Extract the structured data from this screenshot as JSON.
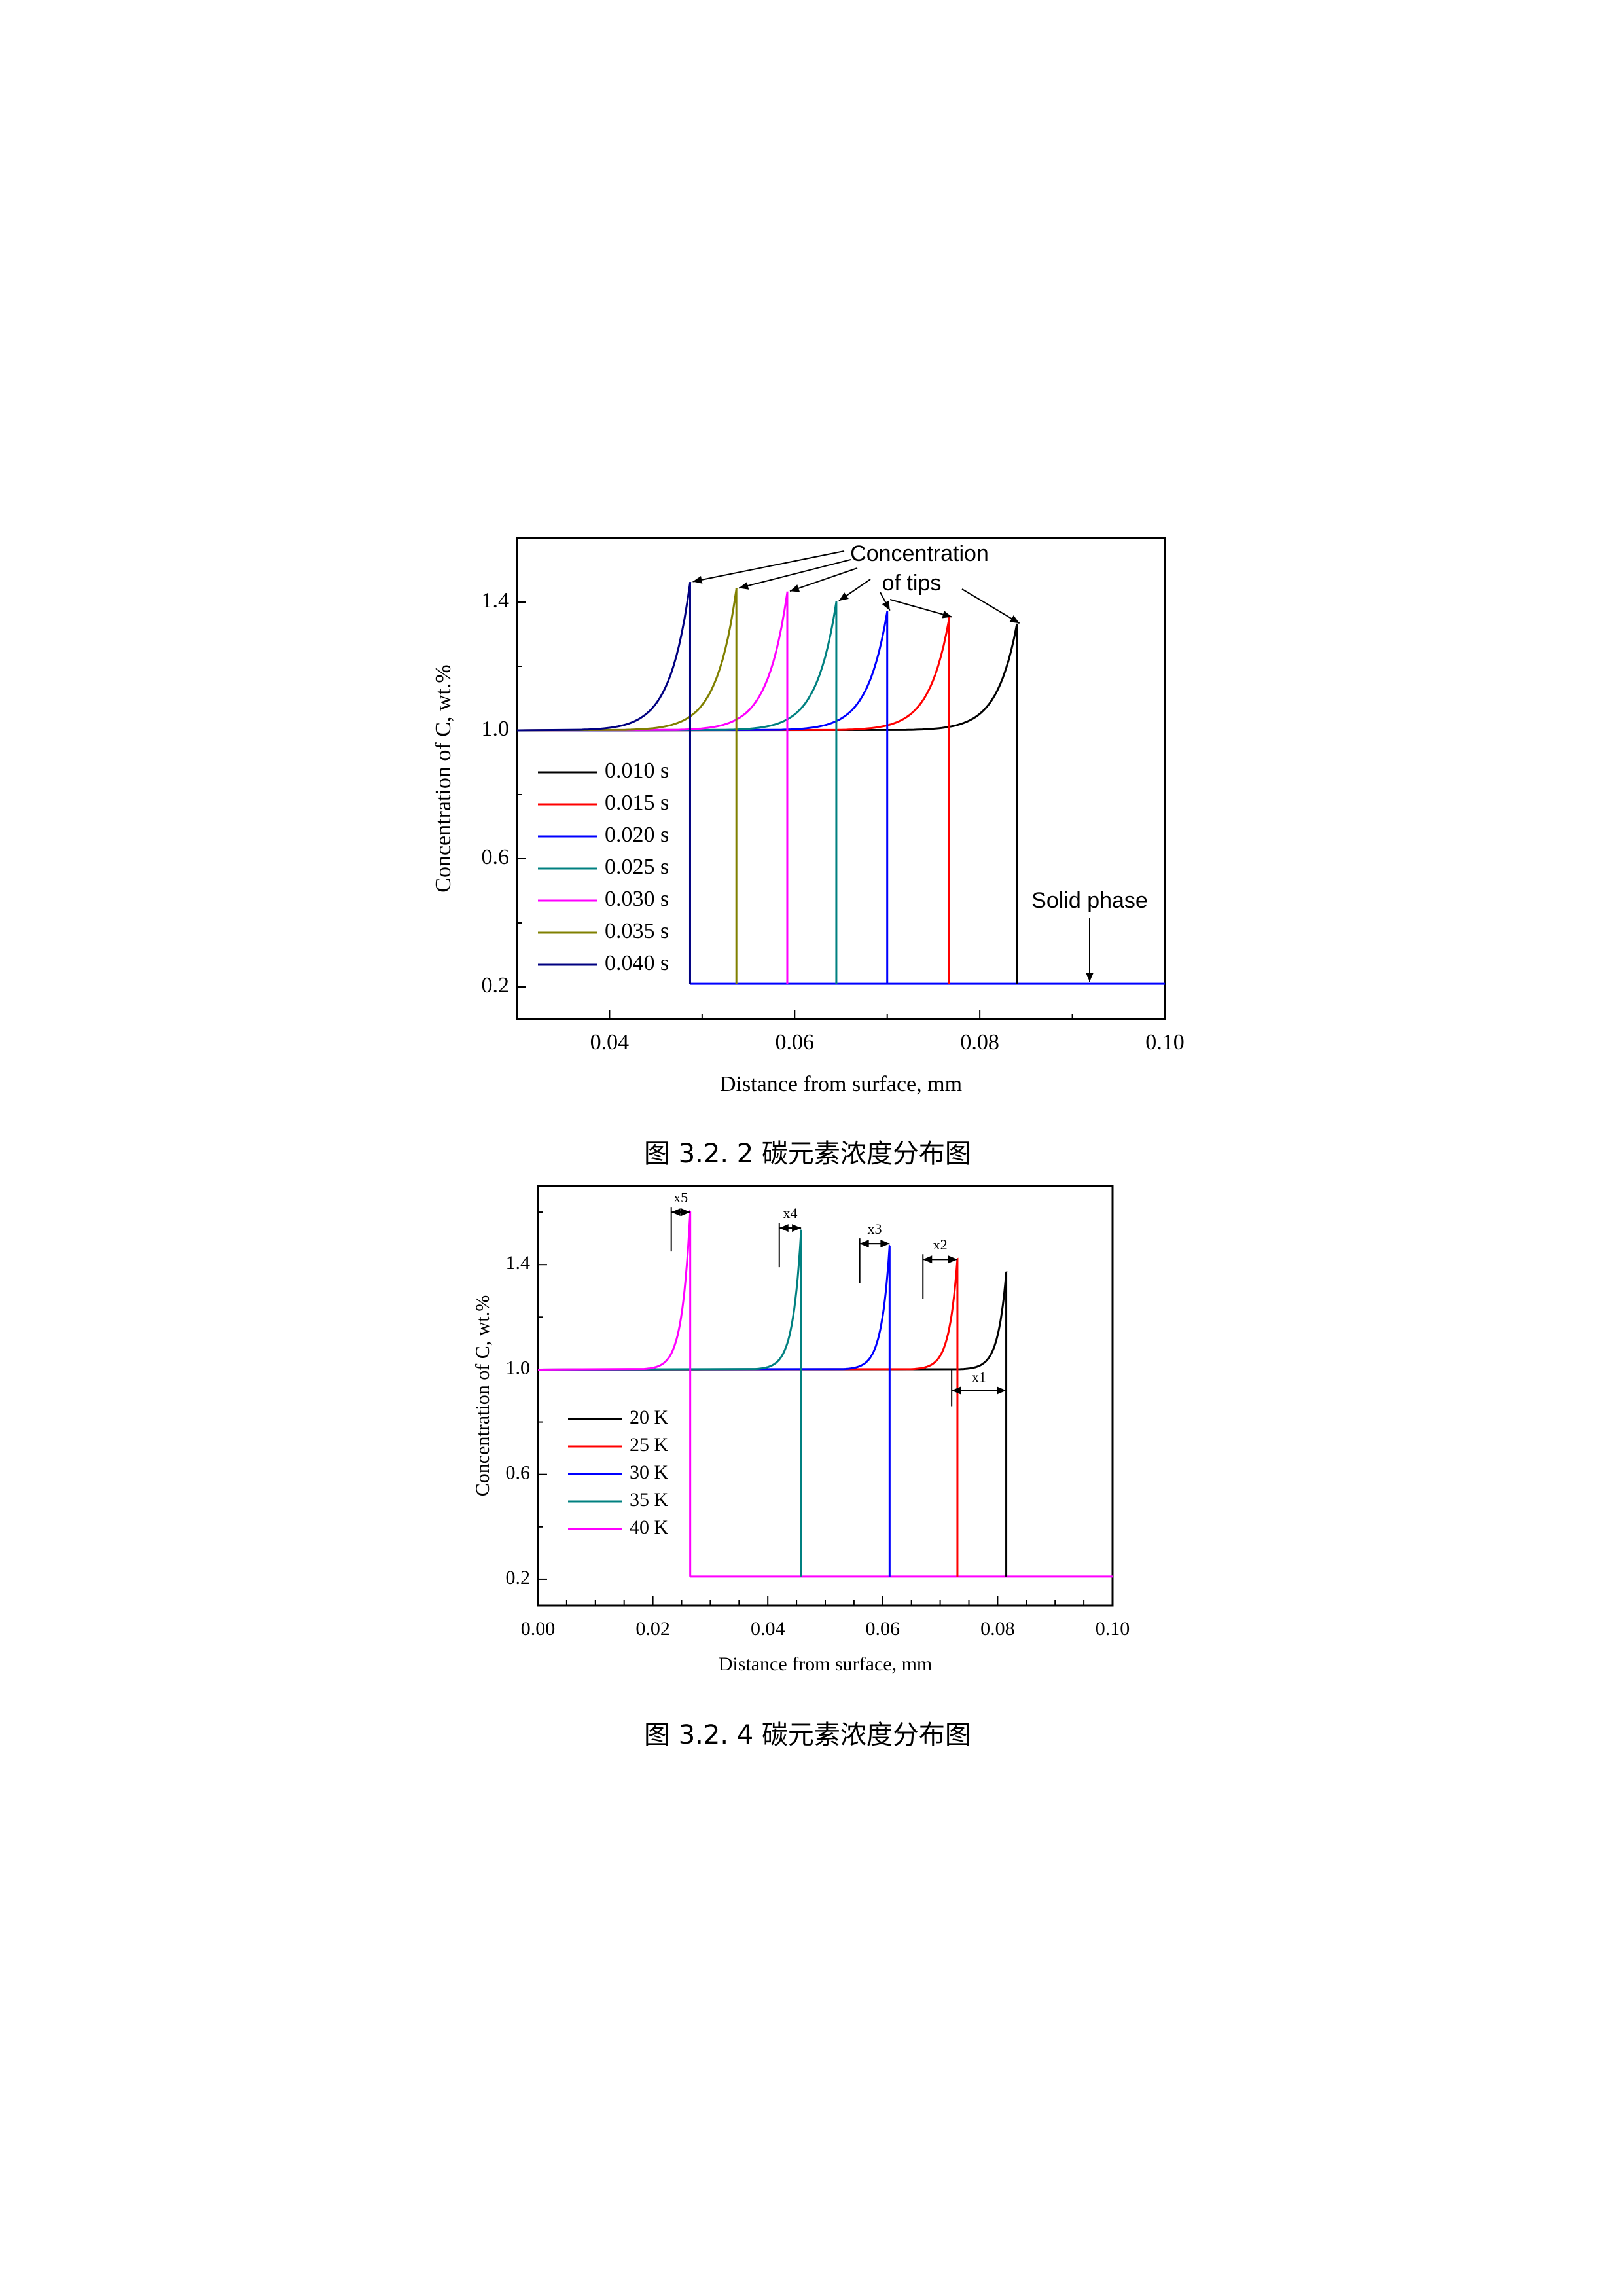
{
  "chart_data": [
    {
      "type": "line",
      "title": "",
      "xlabel": "Distance from surface, mm",
      "ylabel": "Concentration of C, wt.%",
      "xlim": [
        0.03,
        0.1
      ],
      "ylim": [
        0.1,
        1.6
      ],
      "xticks": [
        "0.04",
        "0.06",
        "0.08",
        "0.10"
      ],
      "yticks": [
        "0.2",
        "0.6",
        "1.0",
        "1.4"
      ],
      "legend_placement": "left",
      "annotations": {
        "tips": "Concentration",
        "tips2": "of tips",
        "solid": "Solid phase"
      },
      "series": [
        {
          "name": "0.010 s",
          "color": "#000000",
          "tip": 0.084,
          "peak": 1.33
        },
        {
          "name": "0.015 s",
          "color": "#ff0000",
          "tip": 0.0767,
          "peak": 1.35
        },
        {
          "name": "0.020 s",
          "color": "#0000ff",
          "tip": 0.07,
          "peak": 1.37
        },
        {
          "name": "0.025 s",
          "color": "#008080",
          "tip": 0.0645,
          "peak": 1.4
        },
        {
          "name": "0.030 s",
          "color": "#ff00ff",
          "tip": 0.0592,
          "peak": 1.43
        },
        {
          "name": "0.035 s",
          "color": "#808000",
          "tip": 0.0537,
          "peak": 1.44
        },
        {
          "name": "0.040 s",
          "color": "#000080",
          "tip": 0.0487,
          "peak": 1.46
        }
      ],
      "baseline": 1.0,
      "solid_level": 0.21
    },
    {
      "type": "line",
      "title": "",
      "xlabel": "Distance from surface, mm",
      "ylabel": "Concentration of C, wt.%",
      "xlim": [
        0.0,
        0.1
      ],
      "ylim": [
        0.1,
        1.7
      ],
      "xticks": [
        "0.00",
        "0.02",
        "0.04",
        "0.06",
        "0.08",
        "0.10"
      ],
      "yticks": [
        "0.2",
        "0.6",
        "1.0",
        "1.4"
      ],
      "legend_placement": "left",
      "annotations": {
        "x1": "x1",
        "x2": "x2",
        "x3": "x3",
        "x4": "x4",
        "x5": "x5"
      },
      "series": [
        {
          "name": "20 K",
          "color": "#000000",
          "tip": 0.0815,
          "peak": 1.37
        },
        {
          "name": "25 K",
          "color": "#ff0000",
          "tip": 0.073,
          "peak": 1.42
        },
        {
          "name": "30 K",
          "color": "#0000ff",
          "tip": 0.0612,
          "peak": 1.47
        },
        {
          "name": "35 K",
          "color": "#008080",
          "tip": 0.0458,
          "peak": 1.53
        },
        {
          "name": "40 K",
          "color": "#ff00ff",
          "tip": 0.0265,
          "peak": 1.6
        }
      ],
      "baseline": 1.0,
      "solid_level": 0.21
    }
  ],
  "captions": {
    "fig1": "图 3.2. 2 碳元素浓度分布图",
    "fig2": "图 3.2. 4 碳元素浓度分布图"
  }
}
